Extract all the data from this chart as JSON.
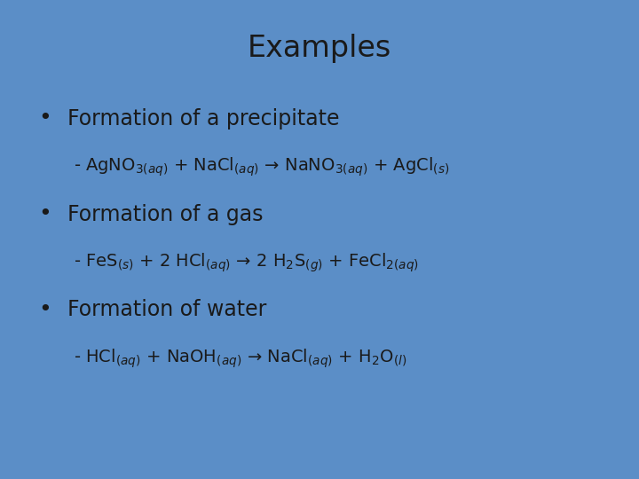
{
  "title": "Examples",
  "background_color": "#5b8ec7",
  "title_fontsize": 24,
  "title_color": "#1a1a1a",
  "text_color": "#1a1a1a",
  "figsize": [
    7.2,
    5.4
  ],
  "dpi": 100,
  "bullet1_heading": "Formation of a precipitate",
  "bullet1_eq": "- AgNO$_{3(aq)}$ + NaCl$_{(aq)}$ → NaNO$_{3(aq)}$ + AgCl$_{(s)}$",
  "bullet2_heading": "Formation of a gas",
  "bullet2_eq": "- FeS$_{(s)}$ + 2 HCl$_{(aq)}$ → 2 H$_{2}$S$_{(g)}$ + FeCl$_{2(aq)}$",
  "bullet3_heading": "Formation of water",
  "bullet3_eq": "- HCl$_{(aq)}$ + NaOH$_{(aq)}$ → NaCl$_{(aq)}$ + H$_{2}$O$_{(l)}$",
  "heading_fontsize": 17,
  "eq_fontsize": 14,
  "bullet_symbol": "•"
}
